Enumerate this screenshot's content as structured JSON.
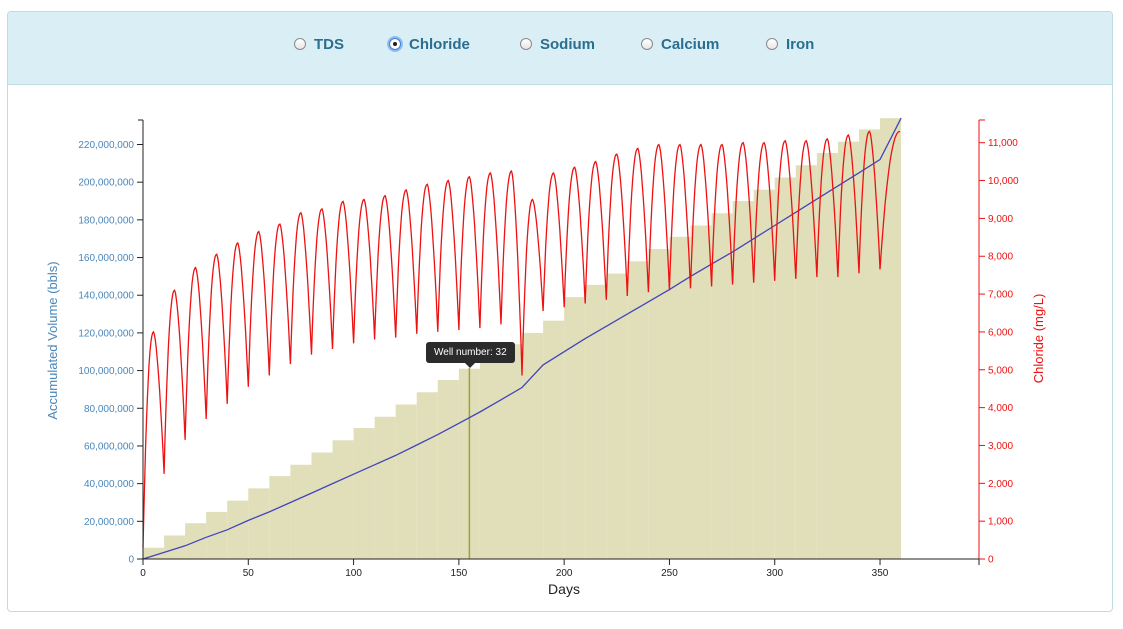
{
  "options": [
    {
      "label": "TDS",
      "selected": false
    },
    {
      "label": "Chloride",
      "selected": true
    },
    {
      "label": "Sodium",
      "selected": false
    },
    {
      "label": "Calcium",
      "selected": false
    },
    {
      "label": "Iron",
      "selected": false
    }
  ],
  "tooltip": {
    "text": "Well number: 32"
  },
  "chart_data": {
    "type": "bar",
    "xlabel": "Days",
    "ylabel_left": "Accumulated Volume (bbls)",
    "ylabel_right": "Chloride (mg/L)",
    "xlim": [
      0,
      397
    ],
    "ylim_left": [
      0,
      233000000
    ],
    "ylim_right": [
      0,
      11600
    ],
    "x_ticks": [
      0,
      50,
      100,
      150,
      200,
      250,
      300,
      350
    ],
    "y_left_ticks": [
      0,
      20000000,
      40000000,
      60000000,
      80000000,
      100000000,
      120000000,
      140000000,
      160000000,
      180000000,
      200000000,
      220000000
    ],
    "y_right_ticks": [
      0,
      1000,
      2000,
      3000,
      4000,
      5000,
      6000,
      7000,
      8000,
      9000,
      10000,
      11000
    ],
    "series": [
      {
        "type": "bar",
        "step_days": 10,
        "bar_start_days": [
          0,
          10,
          20,
          30,
          40,
          50,
          60,
          70,
          80,
          90,
          100,
          110,
          120,
          130,
          140,
          150,
          160,
          170,
          180,
          190,
          200,
          210,
          220,
          230,
          240,
          250,
          260,
          270,
          280,
          290,
          300,
          310,
          320,
          330,
          340,
          350
        ],
        "values": [
          6000000,
          12500000,
          19000000,
          25000000,
          31000000,
          37500000,
          44000000,
          50000000,
          56500000,
          63000000,
          69500000,
          75500000,
          82000000,
          88500000,
          95000000,
          101000000,
          107500000,
          114000000,
          120000000,
          126500000,
          139000000,
          145500000,
          151500000,
          158000000,
          164500000,
          171000000,
          177000000,
          183500000,
          190000000,
          196000000,
          202500000,
          209000000,
          215500000,
          221500000,
          228000000,
          234000000
        ],
        "color": "#e0dfba"
      },
      {
        "type": "line",
        "axis": "left",
        "x": [
          0,
          10,
          20,
          30,
          40,
          50,
          60,
          70,
          80,
          90,
          100,
          110,
          120,
          130,
          140,
          150,
          160,
          170,
          180,
          190,
          200,
          210,
          220,
          230,
          240,
          250,
          260,
          270,
          280,
          290,
          300,
          310,
          320,
          330,
          340,
          350,
          360
        ],
        "values": [
          0,
          3500000,
          7000000,
          11500000,
          15500000,
          20500000,
          25000000,
          30000000,
          35000000,
          40000000,
          45000000,
          50000000,
          55000000,
          60500000,
          66000000,
          72000000,
          78000000,
          84500000,
          91000000,
          103000000,
          110000000,
          117000000,
          123500000,
          130000000,
          136500000,
          143000000,
          150000000,
          156500000,
          163000000,
          170000000,
          177000000,
          184000000,
          191000000,
          198000000,
          205000000,
          212000000,
          234000000
        ],
        "color": "#4444bb"
      },
      {
        "type": "line",
        "axis": "right",
        "shape": "sawtooth",
        "period_days": 10,
        "first_min": 300,
        "peaks": [
          6000,
          7100,
          7700,
          8050,
          8350,
          8650,
          8850,
          9150,
          9250,
          9450,
          9500,
          9600,
          9750,
          9900,
          10000,
          10100,
          10200,
          10250,
          9500,
          10200,
          10350,
          10500,
          10700,
          10850,
          10950,
          10950,
          10950,
          10950,
          11000,
          11000,
          11050,
          11050,
          11100,
          11200,
          11300,
          11350
        ],
        "troughs": [
          2250,
          3150,
          3700,
          4100,
          4550,
          4850,
          5150,
          5400,
          5550,
          5700,
          5800,
          5850,
          5950,
          6000,
          6050,
          6100,
          6200,
          4850,
          6550,
          6650,
          6750,
          6850,
          6950,
          7050,
          7100,
          7150,
          7200,
          7250,
          7300,
          7350,
          7400,
          7450,
          7450,
          7550,
          7650
        ],
        "last_value": 11300,
        "color": "#ee1111"
      }
    ],
    "marker_day": 155
  }
}
